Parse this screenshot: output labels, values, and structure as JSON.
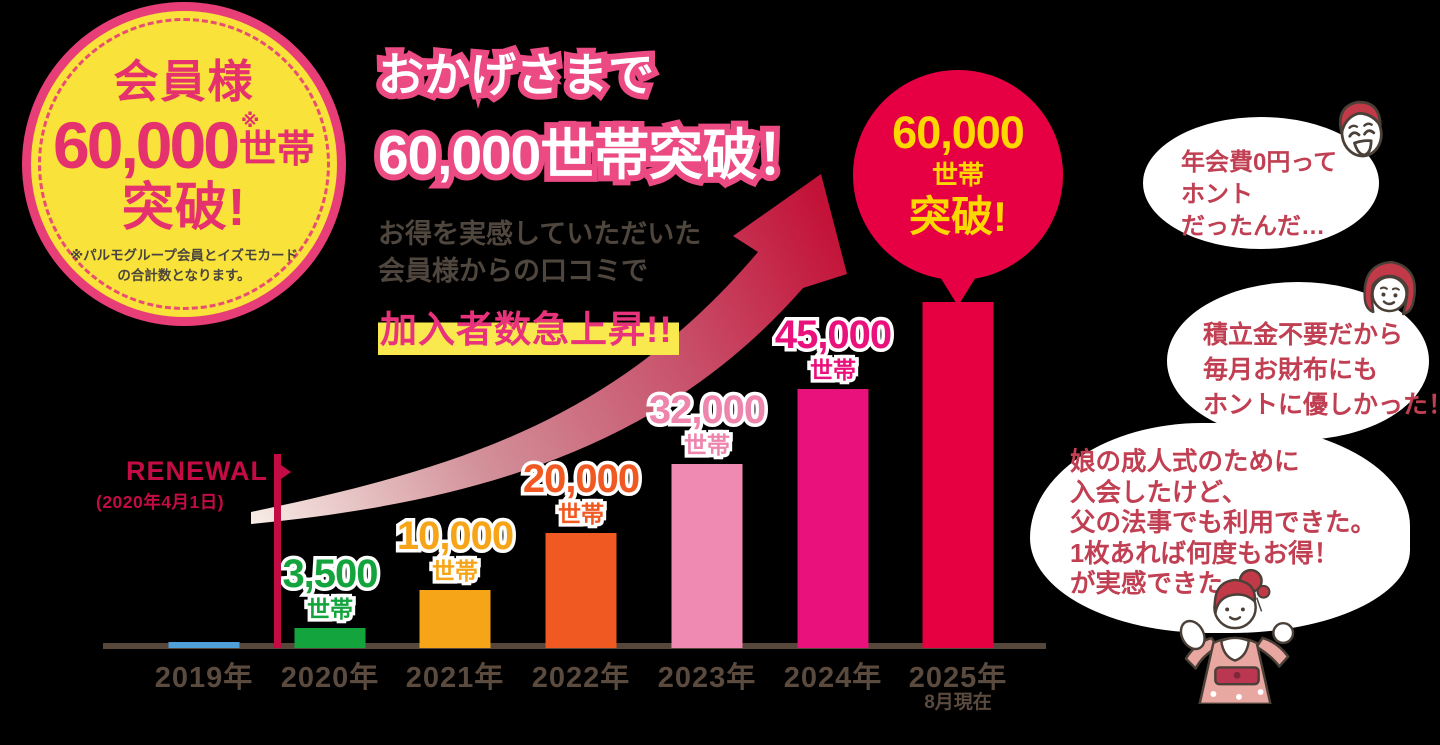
{
  "badge": {
    "line1": "会員様",
    "number": "60,000",
    "asterisk": "※",
    "unit": "世帯",
    "line3": "突破!",
    "note1": "※パルモグループ会員とイズモカード",
    "note2": "の合計数となります。"
  },
  "headline": {
    "line1": "おかげさまで",
    "line2": "60,000世帯突破！",
    "sub1": "お得を実感していただいた",
    "sub2": "会員様からの口コミで",
    "highlight": "加入者数急上昇!!"
  },
  "balloon": {
    "number": "60,000",
    "unit": "世帯",
    "burst": "突破!"
  },
  "renewal": {
    "label": "RENEWAL",
    "date": "(2020年4月1日)"
  },
  "chart_data": {
    "type": "bar",
    "title": "おかげさまで60,000世帯突破！",
    "categories": [
      "2019年",
      "2020年",
      "2021年",
      "2022年",
      "2023年",
      "2024年",
      "2025年"
    ],
    "values": [
      1000,
      3500,
      10000,
      20000,
      32000,
      45000,
      60000
    ],
    "value_labels": [
      "",
      "3,500",
      "10,000",
      "20,000",
      "32,000",
      "45,000",
      ""
    ],
    "unit": "世帯",
    "last_category_note": "8月現在",
    "bar_colors": [
      "#4f9fd8",
      "#14a43d",
      "#f6a519",
      "#f05a22",
      "#ef8ab2",
      "#e9117c",
      "#e60041"
    ],
    "label_colors": [
      "",
      "#14a43d",
      "#f6a519",
      "#f05a22",
      "#ee85ad",
      "#e9117c",
      ""
    ],
    "xlabel": "",
    "ylabel": "",
    "ylim": [
      0,
      62000
    ],
    "grid": false,
    "legend": "none",
    "peak_callout": "60,000世帯突破!",
    "renewal_marker": "RENEWAL (2020年4月1日)"
  },
  "bubbles": [
    {
      "icon": "man-face",
      "lines": [
        "年会費0円って",
        "ホント",
        "だったんだ…"
      ]
    },
    {
      "icon": "woman-face",
      "lines": [
        "積立金不要だから",
        "毎月お財布にも",
        "ホントに優しかった！"
      ]
    },
    {
      "icon": "kimono-woman",
      "lines": [
        "娘の成人式のために",
        "入会したけど、",
        "父の法事でも利用できた。",
        "1枚あれば何度もお得！",
        "が実感できた"
      ]
    }
  ],
  "colors": {
    "background": "#000000",
    "accent_pink": "#e8327c",
    "crimson": "#e60043",
    "badge_yellow": "#f9e23a",
    "highlight_yellow": "#f9e94e",
    "axis_brown": "#57463a",
    "bubble_text_red": "#c13f52"
  }
}
